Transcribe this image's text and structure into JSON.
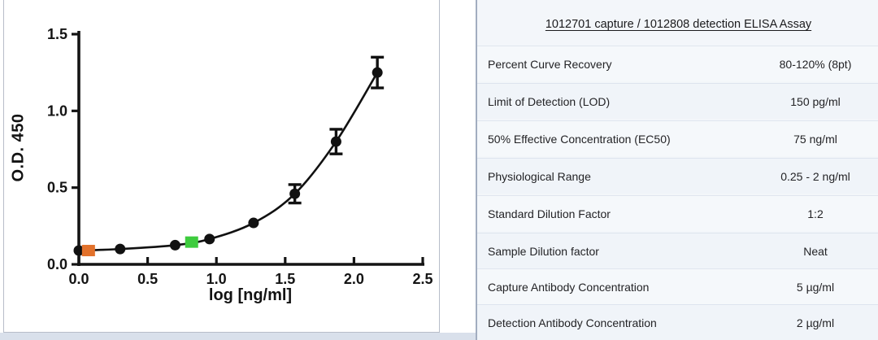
{
  "chart_data": {
    "type": "scatter",
    "title": "",
    "xlabel": "log [ng/ml]",
    "ylabel": "O.D. 450",
    "xlim": [
      0,
      2.5
    ],
    "ylim": [
      0,
      1.5
    ],
    "x_ticks": [
      0.0,
      0.5,
      1.0,
      1.5,
      2.0,
      2.5
    ],
    "y_ticks": [
      0.0,
      0.5,
      1.0,
      1.5
    ],
    "grid": false,
    "legend": "none",
    "series": [
      {
        "name": "standard-curve",
        "marker": "circle",
        "color": "#111111",
        "line": true,
        "points": [
          {
            "x": 0.0,
            "y": 0.09
          },
          {
            "x": 0.3,
            "y": 0.1
          },
          {
            "x": 0.7,
            "y": 0.125
          },
          {
            "x": 0.95,
            "y": 0.165
          },
          {
            "x": 1.27,
            "y": 0.27
          },
          {
            "x": 1.57,
            "y": 0.46,
            "err": 0.06
          },
          {
            "x": 1.87,
            "y": 0.8,
            "err": 0.08
          },
          {
            "x": 2.17,
            "y": 1.25,
            "err": 0.1
          }
        ]
      },
      {
        "name": "orange-control-marker",
        "marker": "square",
        "color": "#e2712b",
        "line": false,
        "points": [
          {
            "x": 0.07,
            "y": 0.09
          }
        ]
      },
      {
        "name": "green-control-marker",
        "marker": "square",
        "color": "#3ecc3e",
        "line": false,
        "points": [
          {
            "x": 0.82,
            "y": 0.145
          }
        ]
      }
    ]
  },
  "table": {
    "title": "1012701 capture / 1012808 detection ELISA Assay",
    "rows": [
      {
        "label": "Percent Curve Recovery",
        "value": "80-120% (8pt)"
      },
      {
        "label": "Limit of Detection (LOD)",
        "value": "150 pg/ml"
      },
      {
        "label": "50% Effective Concentration (EC50)",
        "value": "75 ng/ml"
      },
      {
        "label": "Physiological Range",
        "value": "0.25 - 2 ng/ml"
      },
      {
        "label": "Standard Dilution Factor",
        "value": "1:2"
      },
      {
        "label": "Sample Dilution factor",
        "value": "Neat"
      },
      {
        "label": "Capture Antibody Concentration",
        "value": "5 µg/ml"
      },
      {
        "label": "Detection Antibody Concentration",
        "value": "2 µg/ml"
      }
    ]
  }
}
